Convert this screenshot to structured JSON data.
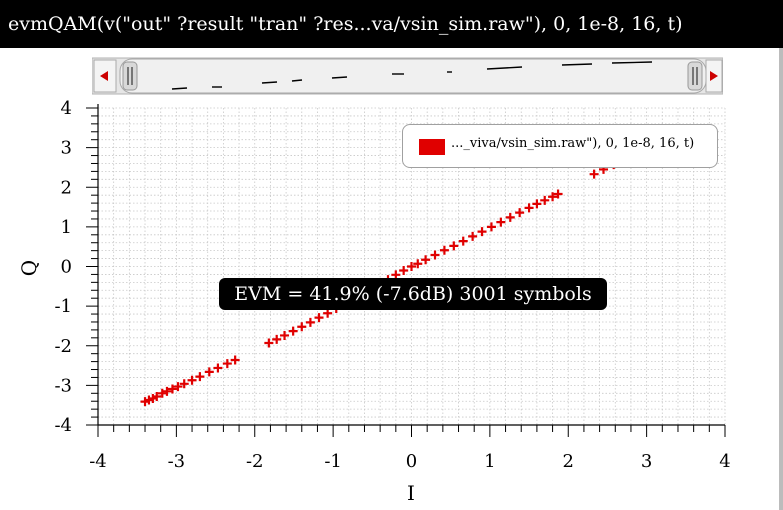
{
  "window": {
    "title": "evmQAM(v(\"out\" ?result \"tran\" ?res...va/vsin_sim.raw\"), 0, 1e-8, 16, t)"
  },
  "annotation": {
    "evm_text": "EVM = 41.9% (-7.6dB)  3001 symbols"
  },
  "colors": {
    "series": "#e00000",
    "grid": "#c8c8c8",
    "annotation_bg": "#000000"
  },
  "chart_data": {
    "type": "scatter",
    "title": "",
    "xlabel": "I",
    "ylabel": "Q",
    "xlim": [
      -4,
      4
    ],
    "ylim": [
      -4,
      4
    ],
    "xticks": [
      "-4",
      "-3",
      "-2",
      "-1",
      "0",
      "1",
      "2",
      "3",
      "4"
    ],
    "yticks": [
      "4",
      "3",
      "2",
      "1",
      "0",
      "-1",
      "-2",
      "-3",
      "-4"
    ],
    "grid": true,
    "legend_position": "top-right",
    "series": [
      {
        "name": "..._viva/vsin_sim.raw\"), 0, 1e-8, 16, t)",
        "marker": "plus",
        "points": [
          [
            -3.4,
            -3.41
          ],
          [
            -3.35,
            -3.37
          ],
          [
            -3.3,
            -3.33
          ],
          [
            -3.25,
            -3.28
          ],
          [
            -3.18,
            -3.2
          ],
          [
            -3.12,
            -3.15
          ],
          [
            -3.05,
            -3.09
          ],
          [
            -2.98,
            -3.03
          ],
          [
            -2.9,
            -2.96
          ],
          [
            -2.8,
            -2.87
          ],
          [
            -2.7,
            -2.78
          ],
          [
            -2.58,
            -2.66
          ],
          [
            -2.47,
            -2.56
          ],
          [
            -2.35,
            -2.45
          ],
          [
            -2.25,
            -2.36
          ],
          [
            -1.82,
            -1.93
          ],
          [
            -1.72,
            -1.84
          ],
          [
            -1.62,
            -1.74
          ],
          [
            -1.51,
            -1.63
          ],
          [
            -1.4,
            -1.52
          ],
          [
            -1.29,
            -1.41
          ],
          [
            -1.18,
            -1.29
          ],
          [
            -1.07,
            -1.18
          ],
          [
            -0.96,
            -1.06
          ],
          [
            -0.85,
            -0.94
          ],
          [
            -0.74,
            -0.82
          ],
          [
            -0.63,
            -0.7
          ],
          [
            -0.52,
            -0.58
          ],
          [
            -0.41,
            -0.45
          ],
          [
            -0.3,
            -0.33
          ],
          [
            -0.2,
            -0.21
          ],
          [
            -0.1,
            -0.1
          ],
          [
            0.0,
            0.0
          ],
          [
            0.08,
            0.07
          ],
          [
            0.18,
            0.17
          ],
          [
            0.3,
            0.29
          ],
          [
            0.42,
            0.41
          ],
          [
            0.54,
            0.52
          ],
          [
            0.66,
            0.64
          ],
          [
            0.78,
            0.76
          ],
          [
            0.9,
            0.88
          ],
          [
            1.02,
            1.0
          ],
          [
            1.14,
            1.12
          ],
          [
            1.26,
            1.24
          ],
          [
            1.38,
            1.36
          ],
          [
            1.5,
            1.48
          ],
          [
            1.6,
            1.58
          ],
          [
            1.7,
            1.67
          ],
          [
            1.8,
            1.76
          ],
          [
            1.87,
            1.83
          ],
          [
            2.33,
            2.33
          ],
          [
            2.45,
            2.45
          ],
          [
            2.58,
            2.57
          ]
        ]
      }
    ]
  }
}
